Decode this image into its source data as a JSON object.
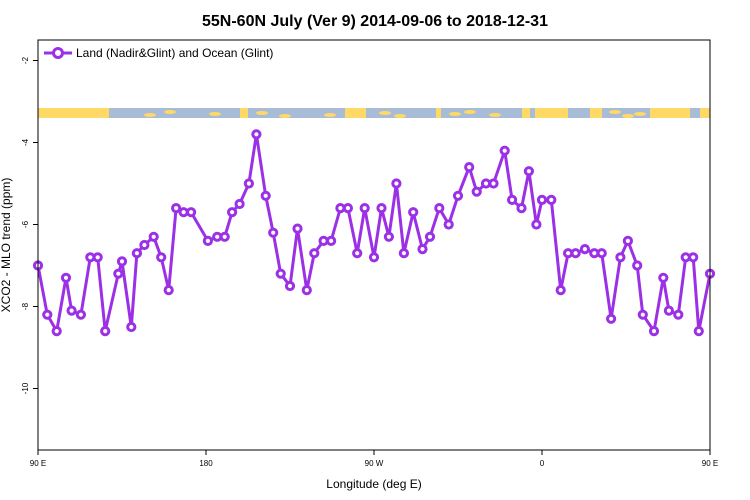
{
  "chart_data": {
    "type": "line",
    "title": "55N-60N July (Ver 9)   2014-09-06 to 2018-12-31",
    "xlabel": "Longitude (deg E)",
    "ylabel": "XCO2 - MLO trend (ppm)",
    "x_tick_labels": [
      "90 E",
      "180",
      "90 W",
      "0",
      "90 E",
      "180"
    ],
    "y_ticks": [
      -2,
      -4,
      -6,
      -8,
      -10
    ],
    "ylim": [
      -11.5,
      -1.5
    ],
    "xlim": [
      90,
      450
    ],
    "grid": false,
    "legend_position": "top-left",
    "series_color": "#9B30E6",
    "land_color": "#FFD966",
    "ocean_color": "#A8BCD8",
    "series": [
      {
        "name": "Land (Nadir&Glint) and Ocean (Glint)",
        "x": [
          90,
          95,
          100,
          105,
          108,
          113,
          118,
          122,
          126,
          133,
          135,
          140,
          143,
          147,
          152,
          156,
          160,
          164,
          168,
          172,
          181,
          186,
          190,
          194,
          198,
          203,
          207,
          212,
          216,
          220,
          225,
          229,
          234,
          238,
          243,
          247,
          252,
          256,
          261,
          265,
          270,
          274,
          278,
          282,
          286,
          291,
          296,
          300,
          305,
          310,
          315,
          321,
          325,
          330,
          334,
          340,
          344,
          349,
          353,
          357,
          360,
          365,
          370,
          374,
          378,
          383,
          388,
          392,
          397,
          402,
          406,
          411,
          414,
          420,
          425,
          428,
          433,
          437,
          441,
          444,
          450
        ],
        "y": [
          -7.0,
          -8.2,
          -8.6,
          -7.3,
          -8.1,
          -8.2,
          -6.8,
          -6.8,
          -8.6,
          -7.2,
          -6.9,
          -8.5,
          -6.7,
          -6.5,
          -6.3,
          -6.8,
          -7.6,
          -5.6,
          -5.7,
          -5.7,
          -6.4,
          -6.3,
          -6.3,
          -5.7,
          -5.5,
          -5.0,
          -3.8,
          -5.3,
          -6.2,
          -7.2,
          -7.5,
          -6.1,
          -7.6,
          -6.7,
          -6.4,
          -6.4,
          -5.6,
          -5.6,
          -6.7,
          -5.6,
          -6.8,
          -5.6,
          -6.3,
          -5.0,
          -6.7,
          -5.7,
          -6.6,
          -6.3,
          -5.6,
          -6.0,
          -5.3,
          -4.6,
          -5.2,
          -5.0,
          -5.0,
          -4.2,
          -5.4,
          -5.6,
          -4.7,
          -6.0,
          -5.4,
          -5.4,
          -7.6,
          -6.7,
          -6.7,
          -6.6,
          -6.7,
          -6.7,
          -8.3,
          -6.8,
          -6.4,
          -7.0,
          -8.2,
          -8.6,
          -7.3,
          -8.1,
          -8.2,
          -6.8,
          -6.8,
          -8.6,
          -7.2
        ]
      }
    ]
  }
}
